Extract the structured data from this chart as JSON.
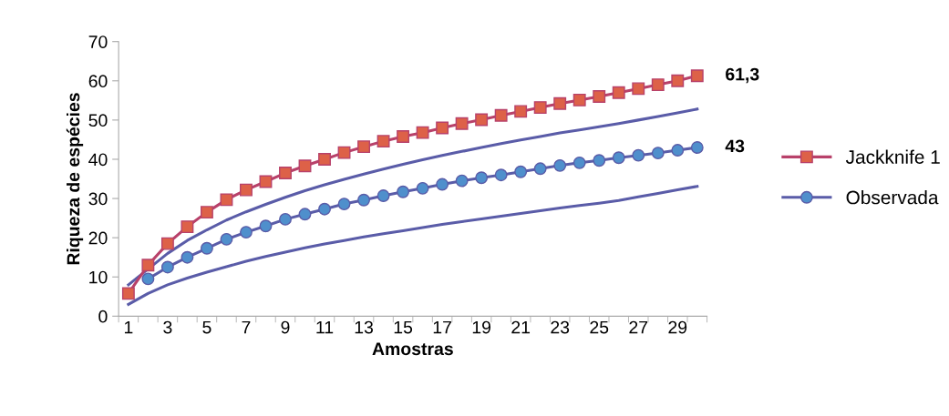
{
  "chart_data": {
    "type": "line",
    "xlabel": "Amostras",
    "ylabel": "Riqueza de espécies",
    "categories": [
      "1",
      null,
      "3",
      null,
      "5",
      null,
      "7",
      null,
      "9",
      null,
      "11",
      null,
      "13",
      null,
      "15",
      null,
      "17",
      null,
      "19",
      null,
      "21",
      null,
      "23",
      null,
      "25",
      null,
      "27",
      null,
      "29",
      null
    ],
    "ylim": [
      0,
      70
    ],
    "yticks": [
      0,
      10,
      20,
      30,
      40,
      50,
      60,
      70
    ],
    "grid": false,
    "legend": "right",
    "series": [
      {
        "name": "Jackknife 1",
        "color": "#b8416a",
        "marker": "square",
        "values": [
          5.8,
          13,
          18.5,
          22.8,
          26.5,
          29.7,
          32.2,
          34.3,
          36.5,
          38.3,
          40,
          41.7,
          43.2,
          44.6,
          45.8,
          46.8,
          48,
          49.1,
          50.1,
          51.2,
          52.2,
          53.2,
          54.2,
          55.1,
          56,
          57,
          58,
          59,
          60,
          61.3
        ]
      },
      {
        "name": "Observada",
        "color": "#5a5ca8",
        "marker": "circle",
        "values": [
          null,
          9.5,
          12.5,
          15,
          17.3,
          19.6,
          21.4,
          23,
          24.7,
          26,
          27.3,
          28.6,
          29.6,
          30.7,
          31.7,
          32.6,
          33.6,
          34.5,
          35.3,
          36,
          36.8,
          37.6,
          38.4,
          39.1,
          39.7,
          40.4,
          41,
          41.6,
          42.3,
          43
        ]
      },
      {
        "color": "#5a5ca8",
        "marker": "none",
        "values": [
          8,
          12,
          16,
          19.3,
          22,
          24.5,
          26.6,
          28.5,
          30.3,
          32,
          33.5,
          34.9,
          36.2,
          37.5,
          38.7,
          39.9,
          41,
          42,
          43,
          44,
          44.9,
          45.8,
          46.7,
          47.5,
          48.3,
          49.1,
          50,
          50.9,
          51.8,
          52.8
        ]
      },
      {
        "color": "#5a5ca8",
        "marker": "none",
        "values": [
          3,
          5.8,
          8,
          9.7,
          11.2,
          12.6,
          14,
          15.2,
          16.3,
          17.4,
          18.4,
          19.3,
          20.2,
          21,
          21.8,
          22.6,
          23.4,
          24.1,
          24.8,
          25.5,
          26.2,
          26.9,
          27.6,
          28.2,
          28.8,
          29.5,
          30.4,
          31.3,
          32.2,
          33.1
        ]
      }
    ],
    "annotations": [
      "61,3",
      "43"
    ]
  }
}
